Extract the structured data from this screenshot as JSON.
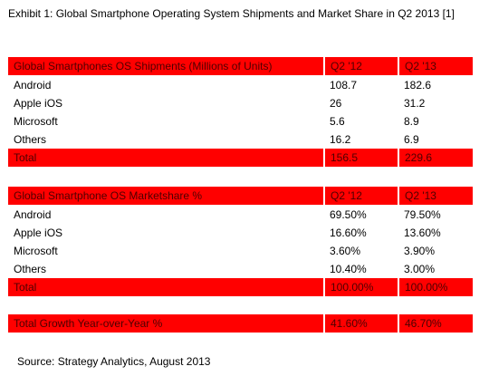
{
  "title": "Exhibit 1: Global Smartphone Operating System Shipments and Market Share in Q2 2013 [1]",
  "shipments": {
    "header": {
      "label": "Global Smartphones OS Shipments (Millions of Units)",
      "q1": "Q2 '12",
      "q2": "Q2 '13"
    },
    "rows": [
      {
        "label": "Android",
        "q1": "108.7",
        "q2": "182.6"
      },
      {
        "label": "Apple iOS",
        "q1": "26",
        "q2": "31.2"
      },
      {
        "label": "Microsoft",
        "q1": "5.6",
        "q2": "8.9"
      },
      {
        "label": "Others",
        "q1": "16.2",
        "q2": "6.9"
      }
    ],
    "total": {
      "label": "Total",
      "q1": "156.5",
      "q2": "229.6"
    }
  },
  "marketshare": {
    "header": {
      "label": "Global Smartphone OS Marketshare  %",
      "q1": "Q2 '12",
      "q2": "Q2 '13"
    },
    "rows": [
      {
        "label": "Android",
        "q1": "69.50%",
        "q2": "79.50%"
      },
      {
        "label": "Apple iOS",
        "q1": "16.60%",
        "q2": "13.60%"
      },
      {
        "label": "Microsoft",
        "q1": "3.60%",
        "q2": "3.90%"
      },
      {
        "label": "Others",
        "q1": "10.40%",
        "q2": "3.00%"
      }
    ],
    "total": {
      "label": "Total",
      "q1": "100.00%",
      "q2": "100.00%"
    }
  },
  "growth": {
    "label": "Total Growth Year-over-Year %",
    "q1": "41.60%",
    "q2": "46.70%"
  },
  "source": "Source: Strategy Analytics, August 2013",
  "colors": {
    "header_fill": "#ff0000",
    "header_text": "#4d0000"
  }
}
